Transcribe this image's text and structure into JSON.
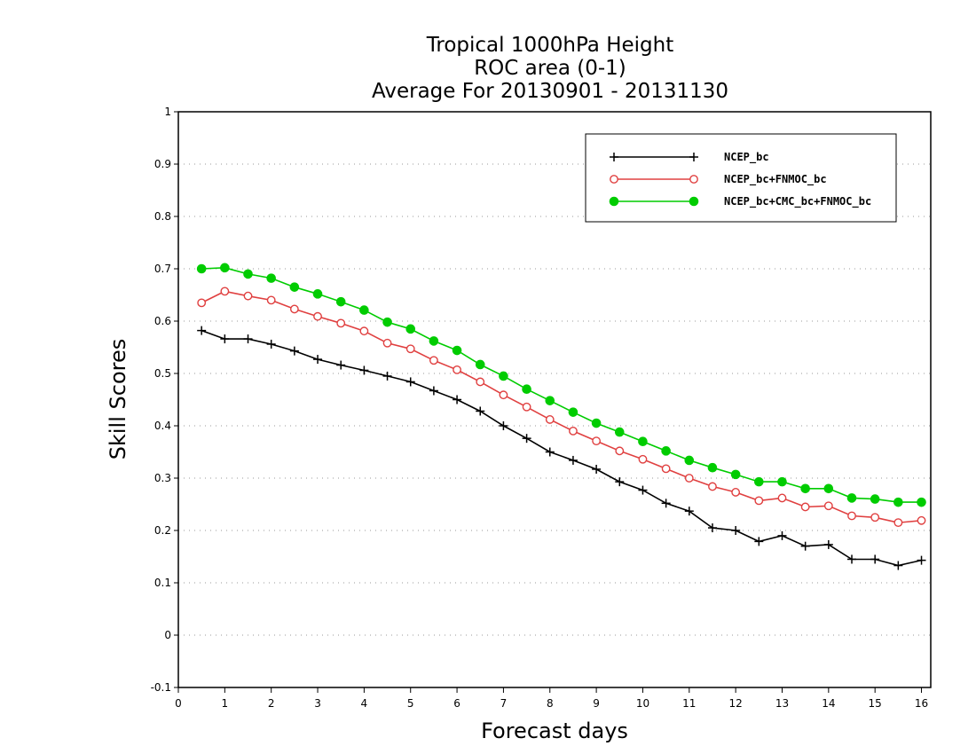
{
  "chart_data": {
    "type": "line",
    "title": [
      "Tropical 1000hPa Height",
      "ROC area (0-1)",
      "Average For 20130901 - 20131130"
    ],
    "xlabel": "Forecast days",
    "ylabel": "Skill Scores",
    "xlim": [
      0,
      16.2
    ],
    "ylim": [
      -0.1,
      1
    ],
    "xticks": [
      "0",
      "1",
      "2",
      "3",
      "4",
      "5",
      "6",
      "7",
      "8",
      "9",
      "10",
      "11",
      "12",
      "13",
      "14",
      "15",
      "16"
    ],
    "yticks": [
      "1",
      "0.9",
      "0.8",
      "0.7",
      "0.6",
      "0.5",
      "0.4",
      "0.3",
      "0.2",
      "0.1",
      "0",
      "-0.1"
    ],
    "grid": "horizontal dotted",
    "legend_position": "top-right",
    "x": [
      0.5,
      1,
      1.5,
      2,
      2.5,
      3,
      3.5,
      4,
      4.5,
      5,
      5.5,
      6,
      6.5,
      7,
      7.5,
      8,
      8.5,
      9,
      9.5,
      10,
      10.5,
      11,
      11.5,
      12,
      12.5,
      13,
      13.5,
      14,
      14.5,
      15,
      15.5,
      16
    ],
    "series": [
      {
        "name": "NCEP_bc",
        "color": "#000000",
        "marker": "plus",
        "values": [
          0.582,
          0.566,
          0.566,
          0.556,
          0.543,
          0.527,
          0.516,
          0.506,
          0.495,
          0.484,
          0.467,
          0.45,
          0.428,
          0.4,
          0.376,
          0.35,
          0.334,
          0.317,
          0.293,
          0.277,
          0.252,
          0.237,
          0.205,
          0.2,
          0.179,
          0.19,
          0.17,
          0.173,
          0.145,
          0.145,
          0.133,
          0.143
        ]
      },
      {
        "name": "NCEP_bc+FNMOC_bc",
        "color": "#e04040",
        "marker": "open-circle",
        "values": [
          0.635,
          0.657,
          0.648,
          0.64,
          0.623,
          0.609,
          0.596,
          0.581,
          0.558,
          0.547,
          0.525,
          0.507,
          0.484,
          0.459,
          0.436,
          0.412,
          0.39,
          0.371,
          0.352,
          0.336,
          0.318,
          0.3,
          0.284,
          0.273,
          0.257,
          0.262,
          0.245,
          0.247,
          0.228,
          0.225,
          0.215,
          0.219
        ]
      },
      {
        "name": "NCEP_bc+CMC_bc+FNMOC_bc",
        "color": "#00cc00",
        "marker": "filled-circle",
        "values": [
          0.7,
          0.702,
          0.69,
          0.682,
          0.665,
          0.652,
          0.637,
          0.621,
          0.598,
          0.585,
          0.562,
          0.544,
          0.517,
          0.495,
          0.47,
          0.448,
          0.426,
          0.405,
          0.388,
          0.37,
          0.352,
          0.334,
          0.32,
          0.307,
          0.293,
          0.293,
          0.28,
          0.28,
          0.262,
          0.26,
          0.254,
          0.254
        ]
      }
    ]
  }
}
